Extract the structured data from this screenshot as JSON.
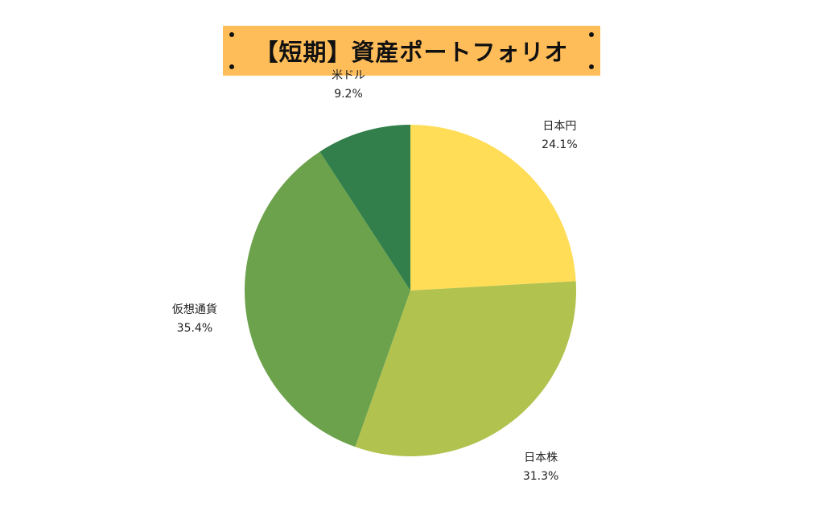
{
  "title": "【短期】資産ポートフォリオ",
  "colors": {
    "title_background": "#FFBD59"
  },
  "chart_data": {
    "type": "pie",
    "title": "【短期】資産ポートフォリオ",
    "start_angle_deg": 0,
    "direction": "clockwise",
    "slices": [
      {
        "label": "日本円",
        "value": 24.1,
        "value_label": "24.1%",
        "color": "#FFDD57"
      },
      {
        "label": "日本株",
        "value": 31.3,
        "value_label": "31.3%",
        "color": "#B2C24F"
      },
      {
        "label": "仮想通貨",
        "value": 35.4,
        "value_label": "35.4%",
        "color": "#6BA24B"
      },
      {
        "label": "米ドル",
        "value": 9.2,
        "value_label": "9.2%",
        "color": "#327F4B"
      }
    ]
  }
}
